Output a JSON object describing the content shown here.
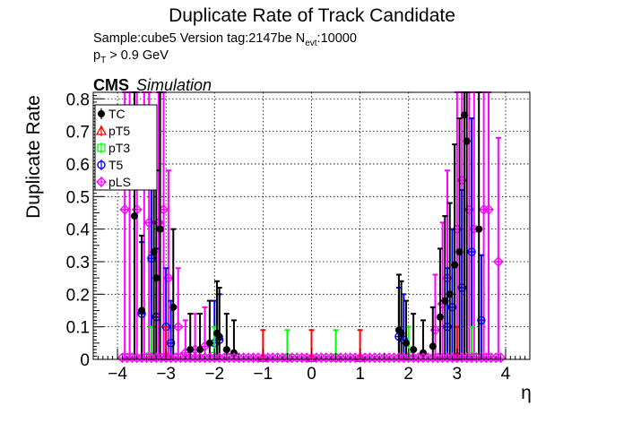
{
  "chart_data": {
    "type": "scatter",
    "title": "Duplicate Rate of Track Candidate",
    "info_line1_prefix": "Sample:cube5   Version tag:2147be  N",
    "info_line1_sub": "evt",
    "info_line1_suffix": ":10000",
    "info_line2_prefix": "p",
    "info_line2_sub": "T",
    "info_line2_suffix": " > 0.9 GeV",
    "cms_label": "CMS",
    "sim_label": "Simulation",
    "xlabel": "η",
    "ylabel": "Duplicate Rate",
    "xlim": [
      -4.5,
      4.5
    ],
    "ylim": [
      0,
      0.82
    ],
    "x_ticks": [
      -4,
      -3,
      -2,
      -1,
      0,
      1,
      2,
      3,
      4
    ],
    "x_tick_labels": [
      "−4",
      "−3",
      "−2",
      "−1",
      "0",
      "1",
      "2",
      "3",
      "4"
    ],
    "y_ticks": [
      0,
      0.1,
      0.2,
      0.3,
      0.4,
      0.5,
      0.6,
      0.7,
      0.8
    ],
    "y_tick_labels": [
      "0",
      "0.1",
      "0.2",
      "0.3",
      "0.4",
      "0.5",
      "0.6",
      "0.7",
      "0.8"
    ],
    "grid": true,
    "legend_position": "top-left",
    "legend": [
      {
        "name": "TC",
        "color": "#000000",
        "marker": "circle-filled"
      },
      {
        "name": "pT5",
        "color": "#ff0000",
        "marker": "triangle-open"
      },
      {
        "name": "pT3",
        "color": "#00ff00",
        "marker": "square-open"
      },
      {
        "name": "T5",
        "color": "#0000ff",
        "marker": "circle-open"
      },
      {
        "name": "pLS",
        "color": "#ff00ff",
        "marker": "star-open"
      }
    ],
    "series": [
      {
        "name": "TC",
        "color": "#000000",
        "points": [
          [
            -3.65,
            0.44
          ],
          [
            -3.5,
            0.15
          ],
          [
            -3.25,
            0.33
          ],
          [
            -3.2,
            0.25
          ],
          [
            -3.12,
            0.4
          ],
          [
            -2.85,
            0.16
          ],
          [
            -2.5,
            0.03
          ],
          [
            -2.3,
            0.03
          ],
          [
            -2.1,
            0.05
          ],
          [
            -1.95,
            0.08
          ],
          [
            -1.9,
            0.07
          ],
          [
            -1.75,
            0.03
          ],
          [
            -1.6,
            0.02
          ],
          [
            1.8,
            0.09
          ],
          [
            1.85,
            0.08
          ],
          [
            1.95,
            0.05
          ],
          [
            2.1,
            0.03
          ],
          [
            2.3,
            0.02
          ],
          [
            2.5,
            0.04
          ],
          [
            2.65,
            0.13
          ],
          [
            2.75,
            0.18
          ],
          [
            2.85,
            0.2
          ],
          [
            2.95,
            0.29
          ],
          [
            3.05,
            0.33
          ],
          [
            3.15,
            0.75
          ],
          [
            3.2,
            0.67
          ],
          [
            3.45,
            0.4
          ]
        ]
      },
      {
        "name": "pT5",
        "color": "#ff0000",
        "points": [
          [
            -3.0,
            0.01
          ],
          [
            -1.0,
            0.005
          ],
          [
            0.0,
            0.005
          ],
          [
            1.0,
            0.005
          ],
          [
            3.0,
            0.01
          ]
        ]
      },
      {
        "name": "pT3",
        "color": "#00ff00",
        "points": [
          [
            -3.3,
            0.01
          ],
          [
            -2.0,
            0.01
          ],
          [
            -0.5,
            0.005
          ],
          [
            0.5,
            0.005
          ],
          [
            2.0,
            0.01
          ],
          [
            3.3,
            0.01
          ]
        ]
      },
      {
        "name": "T5",
        "color": "#0000ff",
        "points": [
          [
            -3.5,
            0.14
          ],
          [
            -3.3,
            0.31
          ],
          [
            -3.2,
            0.13
          ],
          [
            -3.0,
            0.1
          ],
          [
            -2.9,
            0.05
          ],
          [
            -2.0,
            0.05
          ],
          [
            -1.9,
            0.06
          ],
          [
            1.8,
            0.07
          ],
          [
            1.9,
            0.06
          ],
          [
            2.8,
            0.1
          ],
          [
            2.9,
            0.16
          ],
          [
            3.1,
            0.22
          ],
          [
            3.3,
            0.33
          ],
          [
            3.5,
            0.12
          ]
        ]
      },
      {
        "name": "pLS",
        "color": "#ff00ff",
        "points": [
          [
            -3.85,
            0.46
          ],
          [
            -3.75,
            0.55
          ],
          [
            -3.6,
            0.46
          ],
          [
            -3.45,
            0.55
          ],
          [
            -3.35,
            0.42
          ],
          [
            -3.15,
            0.42
          ],
          [
            -3.05,
            0.46
          ],
          [
            -2.95,
            0.25
          ],
          [
            -2.75,
            0.1
          ],
          [
            -2.6,
            0.02
          ],
          [
            -2.4,
            0.03
          ],
          [
            -2.2,
            0.04
          ],
          [
            2.55,
            0.09
          ],
          [
            2.7,
            0.17
          ],
          [
            2.8,
            0.25
          ],
          [
            3.0,
            0.4
          ],
          [
            3.1,
            0.55
          ],
          [
            3.25,
            0.46
          ],
          [
            3.35,
            0.4
          ],
          [
            3.55,
            0.46
          ],
          [
            3.65,
            0.46
          ],
          [
            3.85,
            0.3
          ]
        ]
      }
    ]
  }
}
